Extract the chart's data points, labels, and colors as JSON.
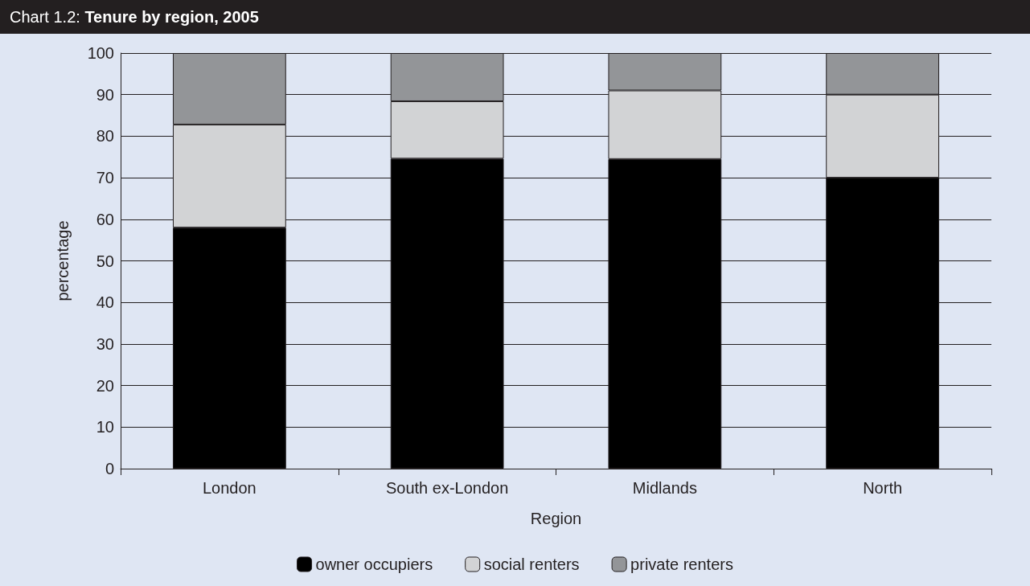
{
  "chart_data": {
    "type": "bar",
    "title": "Chart 1.2: ",
    "subtitle": "Tenure by region, 2005",
    "xlabel": "Region",
    "ylabel": "percentage",
    "categories": [
      "London",
      "South ex-London",
      "Midlands",
      "North"
    ],
    "stacked": true,
    "series": [
      {
        "name": "owner occupiers",
        "color": "#000000",
        "values": [
          58,
          74.6,
          74.5,
          70
        ]
      },
      {
        "name": "social renters",
        "color": "#d2d3d5",
        "values": [
          24.8,
          13.8,
          16.5,
          20
        ]
      },
      {
        "name": "private renters",
        "color": "#939598",
        "values": [
          17.2,
          11.6,
          9,
          10
        ]
      }
    ],
    "ylim": [
      0,
      100
    ],
    "yticks": [
      0,
      10,
      20,
      30,
      40,
      50,
      60,
      70,
      80,
      90,
      100
    ],
    "grid": "y",
    "legend": "bottom"
  }
}
